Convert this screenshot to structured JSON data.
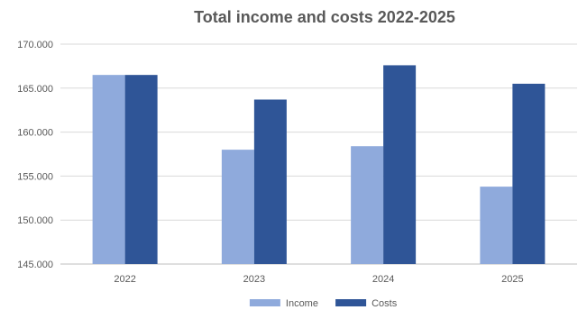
{
  "chart_data": {
    "type": "bar",
    "title": "Total income and costs 2022-2025",
    "xlabel": "",
    "ylabel": "",
    "categories": [
      "2022",
      "2023",
      "2024",
      "2025"
    ],
    "series": [
      {
        "name": "Income",
        "values": [
          166500,
          158000,
          158400,
          153800
        ],
        "color": "#8FAADC"
      },
      {
        "name": "Costs",
        "values": [
          166500,
          163700,
          167600,
          165500
        ],
        "color": "#2F5597"
      }
    ],
    "ylim": [
      145000,
      170000
    ],
    "y_ticks": [
      145000,
      150000,
      155000,
      160000,
      165000,
      170000
    ],
    "y_tick_labels": [
      "145.000",
      "150.000",
      "155.000",
      "160.000",
      "165.000",
      "170.000"
    ],
    "grid": true,
    "legend_position": "bottom"
  }
}
